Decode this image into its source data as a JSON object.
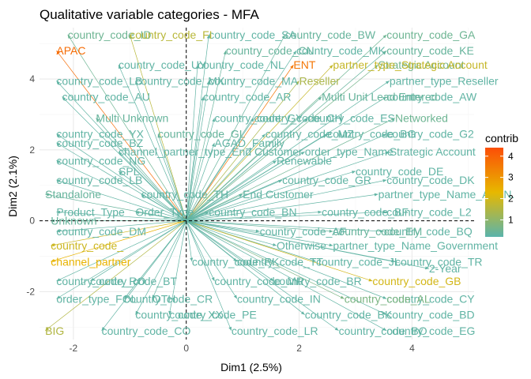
{
  "chart_data": {
    "type": "scatter",
    "title": "Qualitative variable categories - MFA",
    "xlabel": "Dim1 (2.5%)",
    "ylabel": "Dim2 (2.1%)",
    "xlim": [
      -2.6,
      5.1
    ],
    "ylim": [
      -3.35,
      5.45
    ],
    "x_ticks": [
      -2,
      0,
      2,
      4
    ],
    "y_ticks": [
      -2,
      0,
      2,
      4
    ],
    "grid": true,
    "reference_lines": {
      "x": 0,
      "y": 0
    },
    "legend": {
      "title": "contrib",
      "placement": "right",
      "ticks": [
        1,
        2,
        3,
        4
      ],
      "range": [
        0.2,
        4.4
      ],
      "colors": [
        "#5ab4ac",
        "#e7b800",
        "#fc4e07"
      ]
    },
    "points": [
      {
        "label": "country_code_GA",
        "x": 3.55,
        "y": 5.25,
        "contrib": 0.5
      },
      {
        "label": "country_code_BW",
        "x": 1.75,
        "y": 5.25,
        "contrib": 0.4
      },
      {
        "label": "country_code_SA",
        "x": 0.4,
        "y": 5.25,
        "contrib": 0.3
      },
      {
        "label": "country_code_ID",
        "x": -2.1,
        "y": 5.25,
        "contrib": 0.5
      },
      {
        "label": "country_code_FI",
        "x": -1.0,
        "y": 5.25,
        "contrib": 1.6
      },
      {
        "label": "APAC",
        "x": -2.3,
        "y": 4.8,
        "contrib": 3.8
      },
      {
        "label": "country_code_CN",
        "x": 0.7,
        "y": 4.8,
        "contrib": 0.4
      },
      {
        "label": "country_code_MK",
        "x": 1.95,
        "y": 4.8,
        "contrib": 0.3
      },
      {
        "label": "country_code_KE",
        "x": 3.55,
        "y": 4.8,
        "contrib": 0.4
      },
      {
        "label": "Strategic Account",
        "x": 3.4,
        "y": 4.4,
        "contrib": 0.6
      },
      {
        "label": "partner_type_Strategic Account",
        "x": 2.6,
        "y": 4.4,
        "contrib": 1.8
      },
      {
        "label": "ENT",
        "x": 1.9,
        "y": 4.4,
        "contrib": 3.6
      },
      {
        "label": "partner_type_Reseller",
        "x": 3.6,
        "y": 3.95,
        "contrib": 0.3
      },
      {
        "label": "Reseller",
        "x": 2.0,
        "y": 3.95,
        "contrib": 1.4
      },
      {
        "label": "country_code_AW",
        "x": 3.55,
        "y": 3.5,
        "contrib": 0.3
      },
      {
        "label": "Multi Unit Lead Entered",
        "x": 2.4,
        "y": 3.5,
        "contrib": 0.4
      },
      {
        "label": "country_code_AR",
        "x": 0.3,
        "y": 3.5,
        "contrib": 0.3
      },
      {
        "label": "Multi Unknown",
        "x": -1.6,
        "y": 2.9,
        "contrib": 0.4
      },
      {
        "label": "country_code_CH",
        "x": 1.2,
        "y": 2.9,
        "contrib": 0.3
      },
      {
        "label": "country_code_ES",
        "x": 2.15,
        "y": 2.9,
        "contrib": 0.3
      },
      {
        "label": "Networked",
        "x": 3.7,
        "y": 2.9,
        "contrib": 0.5
      },
      {
        "label": "country_code_G2",
        "x": 3.55,
        "y": 2.45,
        "contrib": 0.3
      },
      {
        "label": "country_code_MZ",
        "x": 1.4,
        "y": 2.45,
        "contrib": 0.3
      },
      {
        "label": "country_code_BG",
        "x": 2.5,
        "y": 2.45,
        "contrib": 0.3
      },
      {
        "label": "country_code_GL",
        "x": -0.5,
        "y": 2.45,
        "contrib": 0.4
      },
      {
        "label": "AGAD_Family",
        "x": 0.5,
        "y": 2.2,
        "contrib": 0.3
      },
      {
        "label": "country_code_BZ",
        "x": -2.3,
        "y": 2.2,
        "contrib": 0.3
      },
      {
        "label": "Strategic Account",
        "x": 3.6,
        "y": 1.95,
        "contrib": 0.3
      },
      {
        "label": "channel_partner_type_End Customer",
        "x": -1.2,
        "y": 1.95,
        "contrib": 0.3
      },
      {
        "label": "country_code_NG",
        "x": -2.3,
        "y": 1.7,
        "contrib": 0.3
      },
      {
        "label": "Renewable",
        "x": 1.6,
        "y": 1.7,
        "contrib": 0.3
      },
      {
        "label": "country_code_DE",
        "x": 3.0,
        "y": 1.4,
        "contrib": 0.3
      },
      {
        "label": "country_code_DK",
        "x": 3.55,
        "y": 1.15,
        "contrib": 0.3
      },
      {
        "label": "country_code_GR",
        "x": 1.7,
        "y": 1.15,
        "contrib": 0.3
      },
      {
        "label": "Standalone",
        "x": -2.5,
        "y": 0.75,
        "contrib": 0.4
      },
      {
        "label": "End Customer",
        "x": 1.0,
        "y": 0.75,
        "contrib": 0.3
      },
      {
        "label": "partner_type_Name_A.D.N.",
        "x": 3.4,
        "y": 0.75,
        "contrib": 0.3
      },
      {
        "label": "country_code_L2",
        "x": 3.55,
        "y": 0.25,
        "contrib": 0.3
      },
      {
        "label": "country_code_BF",
        "x": 2.4,
        "y": 0.25,
        "contrib": 0.3
      },
      {
        "label": "Product_Type",
        "x": -2.3,
        "y": 0.25,
        "contrib": 0.3
      },
      {
        "label": "country_code_BQ",
        "x": 3.5,
        "y": -0.3,
        "contrib": 0.3
      },
      {
        "label": "country_code_EM",
        "x": 2.6,
        "y": -0.3,
        "contrib": 0.4
      },
      {
        "label": "country_code_DM",
        "x": -2.3,
        "y": -0.3,
        "contrib": 0.3
      },
      {
        "label": "partner_type_Name_Government",
        "x": 2.6,
        "y": -0.7,
        "contrib": 0.3
      },
      {
        "label": "country_code_",
        "x": -2.4,
        "y": -0.7,
        "contrib": 1.9
      },
      {
        "label": "country_code_TR",
        "x": 3.7,
        "y": -1.15,
        "contrib": 0.3
      },
      {
        "label": "country_code_JL",
        "x": 2.3,
        "y": -1.15,
        "contrib": 0.3
      },
      {
        "label": "channel_partner",
        "x": -2.4,
        "y": -1.15,
        "contrib": 2.4
      },
      {
        "label": "2-Year",
        "x": 4.3,
        "y": -1.35,
        "contrib": 0.3
      },
      {
        "label": "country_code_GB",
        "x": 3.3,
        "y": -1.7,
        "contrib": 2.0
      },
      {
        "label": "country_code_BR",
        "x": 1.55,
        "y": -1.7,
        "contrib": 0.3
      },
      {
        "label": "country_code_RO",
        "x": -2.3,
        "y": -1.7,
        "contrib": 0.3
      },
      {
        "label": "country_code_CY",
        "x": 3.55,
        "y": -2.2,
        "contrib": 0.3
      },
      {
        "label": "country_code_AL",
        "x": 2.8,
        "y": -2.2,
        "contrib": 0.7
      },
      {
        "label": "order_type_FOL",
        "x": -2.3,
        "y": -2.2,
        "contrib": 0.3
      },
      {
        "label": "country_code_BD",
        "x": 3.55,
        "y": -2.65,
        "contrib": 0.3
      },
      {
        "label": "country_code_BK",
        "x": 2.1,
        "y": -2.65,
        "contrib": 0.3
      },
      {
        "label": "country_code_XX",
        "x": -0.9,
        "y": -2.65,
        "contrib": 0.3
      },
      {
        "label": "country_code_EG",
        "x": 3.55,
        "y": -3.1,
        "contrib": 0.3
      },
      {
        "label": "country_code_BO",
        "x": 2.7,
        "y": -3.1,
        "contrib": 0.3
      },
      {
        "label": "BIG",
        "x": -2.5,
        "y": -3.1,
        "contrib": 1.5
      },
      {
        "label": "country_code_CO",
        "x": -1.5,
        "y": -3.1,
        "contrib": 0.3
      },
      {
        "label": "OTH",
        "x": -0.6,
        "y": -2.2,
        "contrib": 0.3
      },
      {
        "label": "country_code_IN",
        "x": 0.9,
        "y": -2.2,
        "contrib": 0.3
      },
      {
        "label": "country_code_MR",
        "x": 0.5,
        "y": -1.7,
        "contrib": 0.3
      },
      {
        "label": "country_code_PK",
        "x": 0.1,
        "y": -1.15,
        "contrib": 0.3
      },
      {
        "label": "Otherwise",
        "x": 1.6,
        "y": -0.7,
        "contrib": 0.3
      },
      {
        "label": "Unknown",
        "x": -2.4,
        "y": 0.0,
        "contrib": 0.4
      },
      {
        "label": "Order_Type",
        "x": -0.9,
        "y": 0.25,
        "contrib": 0.3
      },
      {
        "label": "country_code_BN",
        "x": 0.4,
        "y": 0.25,
        "contrib": 0.3
      },
      {
        "label": "country_code_TH",
        "x": -0.8,
        "y": 0.75,
        "contrib": 0.3
      },
      {
        "label": "country_code_LB",
        "x": -2.3,
        "y": 1.15,
        "contrib": 0.3
      },
      {
        "label": "SPL",
        "x": -1.2,
        "y": 1.4,
        "contrib": 0.3
      },
      {
        "label": "country_code_AU",
        "x": -2.2,
        "y": 3.5,
        "contrib": 0.3
      },
      {
        "label": "country_code_LB",
        "x": -2.3,
        "y": 3.95,
        "contrib": 0.3
      },
      {
        "label": "country_code_MX",
        "x": -0.9,
        "y": 3.95,
        "contrib": 0.3
      },
      {
        "label": "country_code_MA",
        "x": 0.4,
        "y": 3.95,
        "contrib": 0.3
      },
      {
        "label": "country_code_UY",
        "x": -1.2,
        "y": 4.4,
        "contrib": 0.3
      },
      {
        "label": "country_code_NL",
        "x": 0.2,
        "y": 4.4,
        "contrib": 0.3
      },
      {
        "label": "country_code_GY",
        "x": 0.5,
        "y": 2.9,
        "contrib": 0.3
      },
      {
        "label": "country_code_YX",
        "x": -2.3,
        "y": 2.45,
        "contrib": 0.3
      },
      {
        "label": "order_type_Name",
        "x": 2.1,
        "y": 1.95,
        "contrib": 0.3
      },
      {
        "label": "country_code_AF",
        "x": 1.3,
        "y": -0.3,
        "contrib": 0.3
      },
      {
        "label": "country_code_TT",
        "x": 0.9,
        "y": -1.15,
        "contrib": 0.3
      },
      {
        "label": "country_code_PE",
        "x": -0.3,
        "y": -2.65,
        "contrib": 0.3
      },
      {
        "label": "country_code_BT",
        "x": -1.7,
        "y": -1.7,
        "contrib": 0.3
      },
      {
        "label": "country_code_CR",
        "x": -1.1,
        "y": -2.2,
        "contrib": 0.3
      },
      {
        "label": "country_code_LR",
        "x": 0.8,
        "y": -3.1,
        "contrib": 0.3
      }
    ]
  }
}
